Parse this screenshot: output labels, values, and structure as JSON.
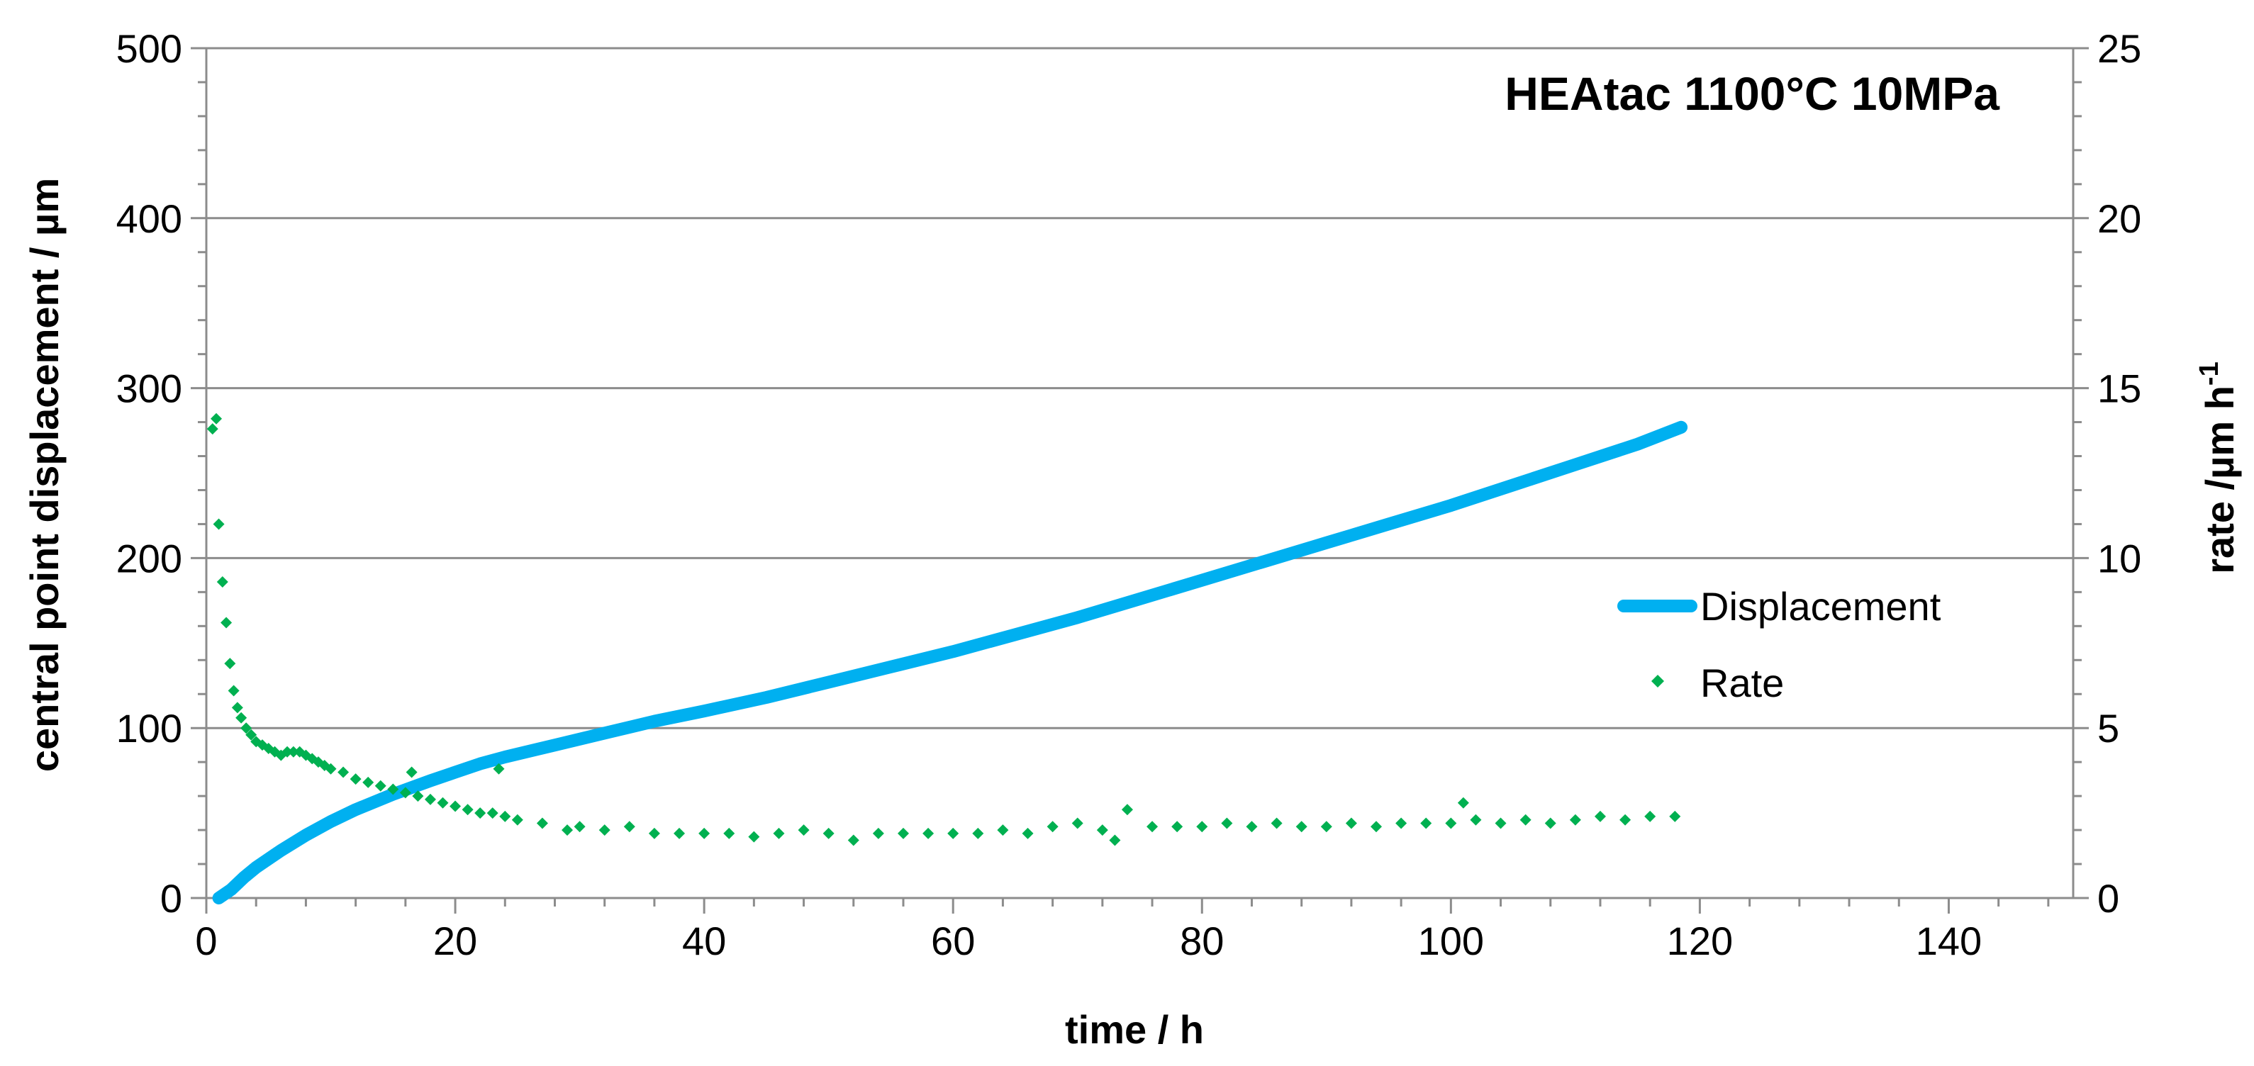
{
  "chart_data": {
    "type": "line",
    "title": "HEAtac 1100°C 10MPa",
    "xlabel": "time / h",
    "ylabel": "central point displacement / µm",
    "y2label": "rate /µm h",
    "y2label_sup": "-1",
    "xlim": [
      0,
      150
    ],
    "ylim": [
      0,
      500
    ],
    "y2lim": [
      0,
      25
    ],
    "x_ticks": [
      0,
      20,
      40,
      60,
      80,
      100,
      120,
      140
    ],
    "y_ticks": [
      0,
      100,
      200,
      300,
      400,
      500
    ],
    "y2_ticks": [
      0,
      5,
      10,
      15,
      20,
      25
    ],
    "grid": "horizontal major gridlines",
    "legend_position": "right-center",
    "series": [
      {
        "name": "Displacement",
        "axis": "left",
        "style": "line",
        "color": "#00b0f0",
        "x": [
          1,
          2,
          3,
          4,
          5,
          6,
          8,
          10,
          12,
          15,
          18,
          20,
          22,
          24,
          28,
          32,
          36,
          40,
          45,
          50,
          55,
          60,
          65,
          70,
          75,
          80,
          85,
          90,
          95,
          100,
          105,
          110,
          115,
          118.5
        ],
        "y": [
          0,
          5,
          12,
          18,
          23,
          28,
          37,
          45,
          52,
          61,
          69,
          74,
          79,
          83,
          90,
          97,
          104,
          110,
          118,
          127,
          136,
          145,
          155,
          165,
          176,
          187,
          198,
          209,
          220,
          231,
          243,
          255,
          267,
          277
        ]
      },
      {
        "name": "Rate",
        "axis": "right",
        "style": "scatter",
        "marker": "diamond",
        "color": "#00b050",
        "x": [
          0.5,
          0.8,
          1.0,
          1.3,
          1.6,
          1.9,
          2.2,
          2.5,
          2.8,
          3.2,
          3.6,
          4.0,
          4.5,
          5.0,
          5.5,
          6.0,
          6.5,
          7.0,
          7.5,
          8.0,
          8.5,
          9.0,
          9.5,
          10.0,
          11.0,
          12.0,
          13.0,
          14.0,
          15.0,
          16.0,
          16.5,
          17.0,
          18.0,
          19.0,
          20.0,
          21.0,
          22.0,
          23.0,
          23.5,
          24.0,
          25.0,
          27.0,
          29.0,
          30.0,
          32.0,
          34.0,
          36.0,
          38.0,
          40.0,
          42.0,
          44.0,
          46.0,
          48.0,
          50.0,
          52.0,
          54.0,
          56.0,
          58.0,
          60.0,
          62.0,
          64.0,
          66.0,
          68.0,
          70.0,
          72.0,
          73.0,
          74.0,
          76.0,
          78.0,
          80.0,
          82.0,
          84.0,
          86.0,
          88.0,
          90.0,
          92.0,
          94.0,
          96.0,
          98.0,
          100.0,
          101.0,
          102.0,
          104.0,
          106.0,
          108.0,
          110.0,
          112.0,
          114.0,
          116.0,
          118.0
        ],
        "y": [
          13.8,
          14.1,
          11.0,
          9.3,
          8.1,
          6.9,
          6.1,
          5.6,
          5.3,
          5.0,
          4.8,
          4.6,
          4.5,
          4.4,
          4.3,
          4.2,
          4.3,
          4.3,
          4.3,
          4.2,
          4.1,
          4.0,
          3.9,
          3.8,
          3.7,
          3.5,
          3.4,
          3.3,
          3.2,
          3.1,
          3.7,
          3.0,
          2.9,
          2.8,
          2.7,
          2.6,
          2.5,
          2.5,
          3.8,
          2.4,
          2.3,
          2.2,
          2.0,
          2.1,
          2.0,
          2.1,
          1.9,
          1.9,
          1.9,
          1.9,
          1.8,
          1.9,
          2.0,
          1.9,
          1.7,
          1.9,
          1.9,
          1.9,
          1.9,
          1.9,
          2.0,
          1.9,
          2.1,
          2.2,
          2.0,
          1.7,
          2.6,
          2.1,
          2.1,
          2.1,
          2.2,
          2.1,
          2.2,
          2.1,
          2.1,
          2.2,
          2.1,
          2.2,
          2.2,
          2.2,
          2.8,
          2.3,
          2.2,
          2.3,
          2.2,
          2.3,
          2.4,
          2.3,
          2.4,
          2.4
        ]
      }
    ]
  }
}
